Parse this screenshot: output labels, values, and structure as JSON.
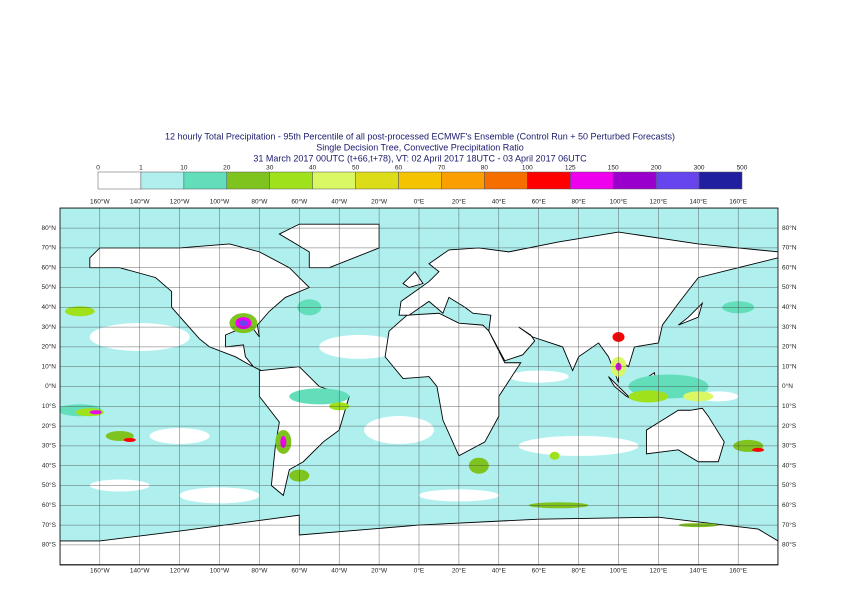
{
  "header": {
    "title": "12 hourly Total Precipitation - 95th Percentile of all post-processed ECMWF's Ensemble (Control Run + 50 Perturbed Forecasts)",
    "subtitle": "Single Decision Tree, Convective Precipitation Ratio",
    "validity": "31 March 2017 00UTC (t+66,t+78), VT: 02 April 2017 18UTC - 03 April 2017 06UTC"
  },
  "legend": {
    "labels": [
      "0",
      "1",
      "10",
      "20",
      "30",
      "40",
      "50",
      "60",
      "70",
      "80",
      "100",
      "125",
      "150",
      "200",
      "300",
      "500"
    ],
    "colors": [
      "#ffffff",
      "#aff0ef",
      "#62deba",
      "#7fc31f",
      "#9fe21c",
      "#d9f864",
      "#dcdc18",
      "#f4c400",
      "#fb9f00",
      "#f66e00",
      "#ff0000",
      "#ee00ee",
      "#9900cc",
      "#6644ee",
      "#1f1f9f",
      "#0b0b4f"
    ]
  },
  "map": {
    "lon_labels": [
      "160°W",
      "140°W",
      "120°W",
      "100°W",
      "80°W",
      "60°W",
      "40°W",
      "20°W",
      "0°E",
      "20°E",
      "40°E",
      "60°E",
      "80°E",
      "100°E",
      "120°E",
      "140°E",
      "160°E"
    ],
    "lat_labels": [
      "80°N",
      "70°N",
      "60°N",
      "50°N",
      "40°N",
      "30°N",
      "20°N",
      "10°N",
      "0°N",
      "10°S",
      "20°S",
      "30°S",
      "40°S",
      "50°S",
      "60°S",
      "70°S",
      "80°S"
    ]
  }
}
